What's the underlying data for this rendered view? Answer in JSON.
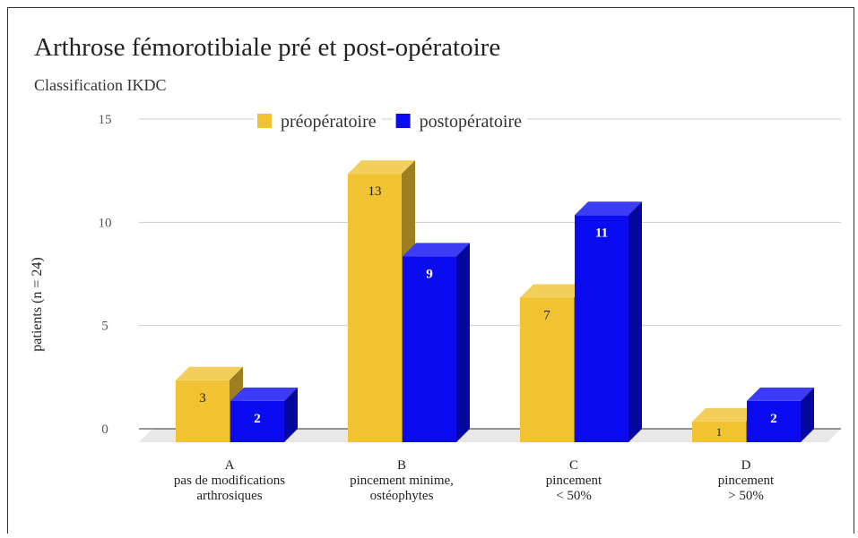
{
  "chart_data": {
    "type": "bar3d",
    "title": "Arthrose fémorotibiale pré et post-opératoire",
    "subtitle": "Classification IKDC",
    "y_label": "patients (n = 24)",
    "categories": [
      [
        "A",
        "pas de modifications",
        "arthrosiques"
      ],
      [
        "B",
        "pincement minime,",
        "ostéophytes"
      ],
      [
        "C",
        "pincement",
        "< 50%"
      ],
      [
        "D",
        "pincement",
        "> 50%"
      ]
    ],
    "series": [
      {
        "name": "préopératoire",
        "color": "#f1c232",
        "values": [
          3,
          13,
          7,
          1
        ]
      },
      {
        "name": "postopératoire",
        "color": "#0b0bf2",
        "values": [
          2,
          9,
          11,
          2
        ]
      }
    ],
    "ylim": [
      0,
      15
    ],
    "yticks": [
      0,
      5,
      10,
      15
    ],
    "grid": true,
    "legend": "top"
  }
}
